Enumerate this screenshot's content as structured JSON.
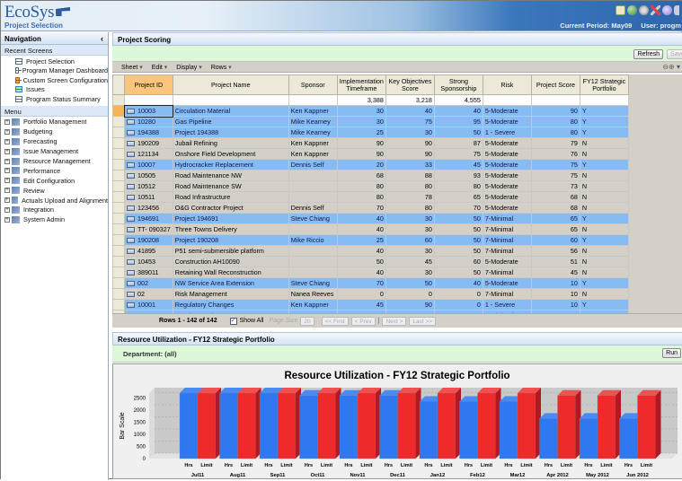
{
  "header": {
    "app_name": "EcoSys",
    "subtitle": "Project Selection",
    "current_period": "Current Period: May09",
    "user": "User: progm",
    "icons": [
      "home-icon",
      "globe-icon",
      "gear-icon",
      "tools-icon",
      "help-icon",
      "logout-icon"
    ]
  },
  "nav": {
    "title": "Navigation",
    "collapse": "‹",
    "recent_label": "Recent Screens",
    "recent": [
      {
        "label": "Project Selection"
      },
      {
        "label": "Program Manager Dashboard"
      },
      {
        "label": "Custom Screen Configuration"
      },
      {
        "label": "Issues"
      },
      {
        "label": "Program Status Summary"
      }
    ],
    "menu_label": "Menu",
    "menu": [
      {
        "label": "Portfolio Management"
      },
      {
        "label": "Budgeting"
      },
      {
        "label": "Forecasting"
      },
      {
        "label": "Issue Management"
      },
      {
        "label": "Resource Management"
      },
      {
        "label": "Performance"
      },
      {
        "label": "Edit Configuration"
      },
      {
        "label": "Review"
      },
      {
        "label": "Actuals Upload and Alignment"
      },
      {
        "label": "Integration"
      },
      {
        "label": "System Admin"
      }
    ]
  },
  "scoring": {
    "title": "Project Scoring",
    "refresh": "Refresh",
    "save": "Save",
    "menus": [
      "Sheet",
      "Edit",
      "Display",
      "Rows"
    ],
    "columns": [
      "Project ID",
      "Project Name",
      "Sponsor",
      "Implementation Timeframe",
      "Key Objectives Score",
      "Strong Sponsorship",
      "Risk",
      "Project Score",
      "FY12 Strategic Portfolio"
    ],
    "totals": [
      "",
      "",
      "",
      "3,388",
      "3,218",
      "4,555",
      "",
      "",
      ""
    ],
    "rows": [
      {
        "hl": true,
        "id": "10003",
        "name": "Circulation Material",
        "sponsor": "Ken Kappner",
        "impl": "30",
        "key": "40",
        "strong": "40",
        "risk": "5-Moderate",
        "score": "90",
        "fy12": "Y"
      },
      {
        "hl": true,
        "id": "10280",
        "name": "Gas Pipeline",
        "sponsor": "Mike Kearney",
        "impl": "30",
        "key": "75",
        "strong": "95",
        "risk": "5-Moderate",
        "score": "80",
        "fy12": "Y"
      },
      {
        "hl": true,
        "id": "194388",
        "name": "Project 194388",
        "sponsor": "Mike Kearney",
        "impl": "25",
        "key": "30",
        "strong": "50",
        "risk": "1 - Severe",
        "score": "80",
        "fy12": "Y"
      },
      {
        "hl": false,
        "id": "190209",
        "name": "Jubail Refining",
        "sponsor": "Ken Kappner",
        "impl": "90",
        "key": "90",
        "strong": "87",
        "risk": "5-Moderate",
        "score": "79",
        "fy12": "N"
      },
      {
        "hl": false,
        "id": "121134",
        "name": "Onshore Field Development",
        "sponsor": "Ken Kappner",
        "impl": "90",
        "key": "90",
        "strong": "75",
        "risk": "5-Moderate",
        "score": "76",
        "fy12": "N"
      },
      {
        "hl": true,
        "id": "10007",
        "name": "Hydrocracker Replacement",
        "sponsor": "Dennis Self",
        "impl": "20",
        "key": "33",
        "strong": "45",
        "risk": "5-Moderate",
        "score": "75",
        "fy12": "Y"
      },
      {
        "hl": false,
        "id": "10505",
        "name": "Road Maintenance NW",
        "sponsor": "",
        "impl": "68",
        "key": "88",
        "strong": "93",
        "risk": "5-Moderate",
        "score": "75",
        "fy12": "N"
      },
      {
        "hl": false,
        "id": "10512",
        "name": "Road Maintenance SW",
        "sponsor": "",
        "impl": "80",
        "key": "80",
        "strong": "80",
        "risk": "5-Moderate",
        "score": "73",
        "fy12": "N"
      },
      {
        "hl": false,
        "id": "10511",
        "name": "Road Infrastructure",
        "sponsor": "",
        "impl": "80",
        "key": "78",
        "strong": "65",
        "risk": "5-Moderate",
        "score": "68",
        "fy12": "N"
      },
      {
        "hl": false,
        "id": "123456",
        "name": "O&G Contractor Project",
        "sponsor": "Dennis Self",
        "impl": "70",
        "key": "80",
        "strong": "70",
        "risk": "5-Moderate",
        "score": "68",
        "fy12": "N"
      },
      {
        "hl": true,
        "id": "194691",
        "name": "Project 194691",
        "sponsor": "Steve Chiang",
        "impl": "40",
        "key": "30",
        "strong": "50",
        "risk": "7-Minimal",
        "score": "65",
        "fy12": "Y"
      },
      {
        "hl": false,
        "id": "TT- 090327",
        "name": "Three Towns Delivery",
        "sponsor": "",
        "impl": "40",
        "key": "30",
        "strong": "50",
        "risk": "7-Minimal",
        "score": "65",
        "fy12": "N"
      },
      {
        "hl": true,
        "id": "190208",
        "name": "Project 190208",
        "sponsor": "Mike Riccio",
        "impl": "25",
        "key": "60",
        "strong": "50",
        "risk": "7-Minimal",
        "score": "60",
        "fy12": "Y"
      },
      {
        "hl": false,
        "id": "41895",
        "name": "P51 semi-submersible platform",
        "sponsor": "",
        "impl": "40",
        "key": "30",
        "strong": "50",
        "risk": "7-Minimal",
        "score": "56",
        "fy12": "N"
      },
      {
        "hl": false,
        "id": "10453",
        "name": "Construction AH10090",
        "sponsor": "",
        "impl": "50",
        "key": "45",
        "strong": "60",
        "risk": "5-Moderate",
        "score": "51",
        "fy12": "N"
      },
      {
        "hl": false,
        "id": "389011",
        "name": "Retaining Wall Reconstruction",
        "sponsor": "",
        "impl": "40",
        "key": "30",
        "strong": "50",
        "risk": "7-Minimal",
        "score": "45",
        "fy12": "N"
      },
      {
        "hl": true,
        "id": "002",
        "name": "NW Service Area Extension",
        "sponsor": "Steve Chiang",
        "impl": "70",
        "key": "50",
        "strong": "40",
        "risk": "5-Moderate",
        "score": "10",
        "fy12": "Y"
      },
      {
        "hl": false,
        "id": "02",
        "name": "Risk Management",
        "sponsor": "Nanea Reeves",
        "impl": "0",
        "key": "0",
        "strong": "0",
        "risk": "7-Minimal",
        "score": "10",
        "fy12": "N"
      },
      {
        "hl": true,
        "id": "10001",
        "name": "Regulatory Changes",
        "sponsor": "Ken Kappner",
        "impl": "45",
        "key": "90",
        "strong": "0",
        "risk": "1 - Severe",
        "score": "10",
        "fy12": "Y"
      },
      {
        "hl": true,
        "id": "10002",
        "name": "Accelerate Cleanup",
        "sponsor": "Nanea Reeves",
        "impl": "25",
        "key": "90",
        "strong": "0",
        "risk": "7-Minimal",
        "score": "10",
        "fy12": "Y"
      }
    ],
    "pager": {
      "rows_text": "Rows 1 - 142 of 142",
      "show_all": "Show All",
      "page_size_label": "Page Size",
      "page_size": "20",
      "first": "<< First",
      "prev": "< Prev",
      "next": "Next >",
      "last": "Last >>"
    }
  },
  "resource": {
    "title": "Resource Utilization - FY12 Strategic Portfolio",
    "department": "Department: (all)",
    "run": "Run"
  },
  "chart_data": {
    "type": "bar",
    "title": "Resource Utilization - FY12 Strategic Portfolio",
    "xlabel": "",
    "ylabel": "Bar Scale",
    "ylim": [
      0,
      2700
    ],
    "yticks": [
      0,
      500,
      1000,
      1500,
      2000,
      2500
    ],
    "categories": [
      "Jul11",
      "Aug11",
      "Sep11",
      "Oct11",
      "Nov11",
      "Dec11",
      "Jan12",
      "Feb12",
      "Mar12",
      "Apr 2012",
      "May 2012",
      "Jun 2012"
    ],
    "series": [
      {
        "name": "Hrs",
        "color": "#2f78f0",
        "values": [
          2700,
          2700,
          2700,
          2600,
          2600,
          2600,
          2350,
          2350,
          2350,
          1650,
          1650,
          1650
        ]
      },
      {
        "name": "Limit",
        "color": "#ef2a2a",
        "values": [
          2700,
          2700,
          2700,
          2700,
          2700,
          2700,
          2700,
          2700,
          2700,
          2600,
          2600,
          2600
        ]
      }
    ],
    "grid": true,
    "style": "3d"
  }
}
